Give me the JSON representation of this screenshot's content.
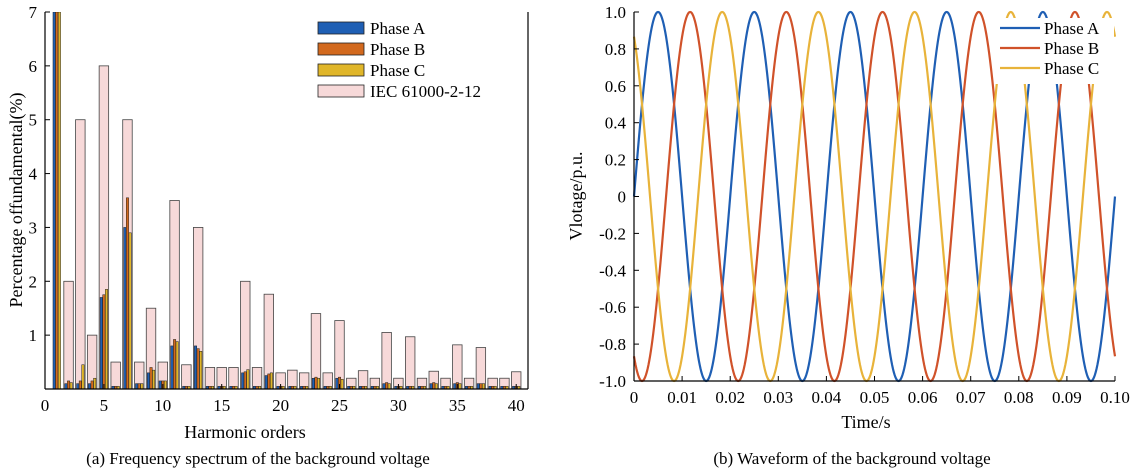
{
  "chart_data": [
    {
      "type": "bar",
      "caption": "(a) Frequency spectrum of the background voltage",
      "xlabel": "Harmonic orders",
      "ylabel": "Percentage offundamental(%)",
      "xlim": [
        0,
        41
      ],
      "ylim": [
        0,
        7
      ],
      "xticks": [
        "0",
        "5",
        "10",
        "15",
        "20",
        "25",
        "30",
        "35",
        "40"
      ],
      "yticks": [
        "1",
        "2",
        "3",
        "4",
        "5",
        "6",
        "7"
      ],
      "legend_position": "top-right",
      "categories": [
        1,
        2,
        3,
        4,
        5,
        6,
        7,
        8,
        9,
        10,
        11,
        12,
        13,
        14,
        15,
        16,
        17,
        18,
        19,
        20,
        21,
        22,
        23,
        24,
        25,
        26,
        27,
        28,
        29,
        30,
        31,
        32,
        33,
        34,
        35,
        36,
        37,
        38,
        39,
        40
      ],
      "series": [
        {
          "name": "Phase A",
          "color": "#1f5fb4",
          "values": [
            7.0,
            0.1,
            0.1,
            0.1,
            1.7,
            0.05,
            3.0,
            0.1,
            0.3,
            0.15,
            0.8,
            0.05,
            0.8,
            0.05,
            0.05,
            0.05,
            0.3,
            0.05,
            0.25,
            0.05,
            0.05,
            0.05,
            0.2,
            0.05,
            0.2,
            0.05,
            0.05,
            0.05,
            0.1,
            0.05,
            0.05,
            0.05,
            0.1,
            0.05,
            0.1,
            0.05,
            0.1,
            0.05,
            0.05,
            0.05
          ]
        },
        {
          "name": "Phase B",
          "color": "#d2691e",
          "values": [
            7.0,
            0.15,
            0.15,
            0.15,
            1.75,
            0.05,
            3.55,
            0.1,
            0.4,
            0.15,
            0.92,
            0.05,
            0.75,
            0.05,
            0.05,
            0.05,
            0.32,
            0.05,
            0.28,
            0.05,
            0.05,
            0.05,
            0.22,
            0.05,
            0.22,
            0.05,
            0.05,
            0.05,
            0.12,
            0.05,
            0.05,
            0.05,
            0.12,
            0.05,
            0.12,
            0.05,
            0.1,
            0.05,
            0.05,
            0.05
          ]
        },
        {
          "name": "Phase C",
          "color": "#e0b62a",
          "values": [
            7.0,
            0.12,
            0.45,
            0.2,
            1.85,
            0.05,
            2.9,
            0.1,
            0.35,
            0.15,
            0.88,
            0.05,
            0.7,
            0.05,
            0.05,
            0.05,
            0.36,
            0.05,
            0.3,
            0.05,
            0.05,
            0.05,
            0.2,
            0.05,
            0.18,
            0.05,
            0.05,
            0.05,
            0.1,
            0.05,
            0.05,
            0.05,
            0.1,
            0.05,
            0.1,
            0.05,
            0.1,
            0.05,
            0.05,
            0.05
          ]
        },
        {
          "name": "IEC 61000-2-12",
          "color": "#f7d9d9",
          "values": [
            null,
            2.0,
            5.0,
            1.0,
            6.0,
            0.5,
            5.0,
            0.5,
            1.5,
            0.5,
            3.5,
            0.45,
            3.0,
            0.4,
            0.4,
            0.4,
            2.0,
            0.4,
            1.76,
            0.3,
            0.35,
            0.3,
            1.4,
            0.3,
            1.27,
            0.2,
            0.34,
            0.2,
            1.05,
            0.2,
            0.97,
            0.2,
            0.33,
            0.2,
            0.82,
            0.2,
            0.77,
            0.2,
            0.2,
            0.32
          ]
        }
      ]
    },
    {
      "type": "line",
      "caption": "(b) Waveform of the background voltage",
      "xlabel": "Time/s",
      "ylabel": "Vlotage/p.u.",
      "xlim": [
        0,
        0.1
      ],
      "ylim": [
        -1.0,
        1.0
      ],
      "xticks": [
        "0",
        "0.01",
        "0.02",
        "0.03",
        "0.04",
        "0.05",
        "0.06",
        "0.07",
        "0.08",
        "0.09",
        "0.10"
      ],
      "yticks": [
        "-1.0",
        "-0.8",
        "-0.6",
        "-0.4",
        "-0.2",
        "0",
        "0.2",
        "0.4",
        "0.6",
        "0.8",
        "1.0"
      ],
      "legend_position": "top-right",
      "frequency_hz": 50,
      "series": [
        {
          "name": "Phase A",
          "color": "#1f5fb4",
          "phase_deg": 0
        },
        {
          "name": "Phase B",
          "color": "#d0522a",
          "phase_deg": -120
        },
        {
          "name": "Phase C",
          "color": "#e8b33a",
          "phase_deg": 120
        }
      ]
    }
  ]
}
